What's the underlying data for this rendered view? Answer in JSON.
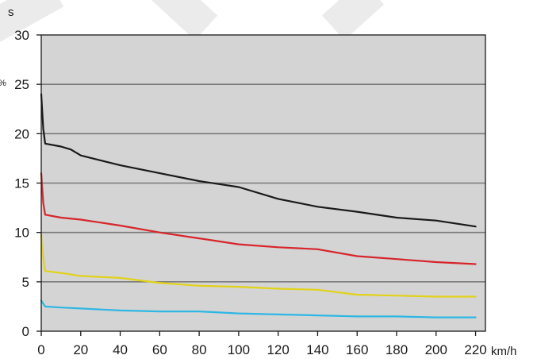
{
  "chart_data": {
    "type": "line",
    "title": "",
    "xlabel": "km/h",
    "ylabel": "s",
    "xlim": [
      0,
      225
    ],
    "ylim": [
      0,
      30
    ],
    "x_ticks": [
      0,
      20,
      40,
      60,
      80,
      100,
      120,
      140,
      160,
      180,
      200,
      220
    ],
    "y_ticks": [
      0,
      5,
      10,
      15,
      20,
      25,
      30
    ],
    "grid": "horizontal",
    "legend": "none",
    "background": "#d4d4d4",
    "series": [
      {
        "color": "#1a1a1a",
        "points": [
          [
            0,
            24
          ],
          [
            1,
            20.5
          ],
          [
            2,
            19
          ],
          [
            10,
            18.7
          ],
          [
            15,
            18.4
          ],
          [
            20,
            17.8
          ],
          [
            40,
            16.8
          ],
          [
            60,
            16.0
          ],
          [
            80,
            15.2
          ],
          [
            100,
            14.6
          ],
          [
            120,
            13.4
          ],
          [
            140,
            12.6
          ],
          [
            160,
            12.1
          ],
          [
            180,
            11.5
          ],
          [
            200,
            11.2
          ],
          [
            220,
            10.6
          ]
        ]
      },
      {
        "color": "#d7252b",
        "points": [
          [
            0,
            16
          ],
          [
            1,
            13
          ],
          [
            2,
            11.8
          ],
          [
            10,
            11.5
          ],
          [
            20,
            11.3
          ],
          [
            40,
            10.7
          ],
          [
            60,
            10.0
          ],
          [
            80,
            9.4
          ],
          [
            100,
            8.8
          ],
          [
            120,
            8.5
          ],
          [
            140,
            8.3
          ],
          [
            160,
            7.6
          ],
          [
            180,
            7.3
          ],
          [
            200,
            7.0
          ],
          [
            220,
            6.8
          ]
        ]
      },
      {
        "color": "#e1d21a",
        "points": [
          [
            0,
            9.8
          ],
          [
            1,
            7.5
          ],
          [
            2,
            6.1
          ],
          [
            10,
            5.9
          ],
          [
            20,
            5.6
          ],
          [
            40,
            5.4
          ],
          [
            60,
            4.9
          ],
          [
            80,
            4.6
          ],
          [
            100,
            4.5
          ],
          [
            120,
            4.3
          ],
          [
            140,
            4.2
          ],
          [
            160,
            3.7
          ],
          [
            180,
            3.6
          ],
          [
            200,
            3.5
          ],
          [
            220,
            3.5
          ]
        ]
      },
      {
        "color": "#2fb7e4",
        "points": [
          [
            0,
            3.1
          ],
          [
            2,
            2.5
          ],
          [
            10,
            2.4
          ],
          [
            20,
            2.3
          ],
          [
            40,
            2.1
          ],
          [
            60,
            2.0
          ],
          [
            80,
            2.0
          ],
          [
            100,
            1.8
          ],
          [
            120,
            1.7
          ],
          [
            140,
            1.6
          ],
          [
            160,
            1.5
          ],
          [
            180,
            1.5
          ],
          [
            200,
            1.4
          ],
          [
            220,
            1.4
          ]
        ]
      }
    ]
  }
}
